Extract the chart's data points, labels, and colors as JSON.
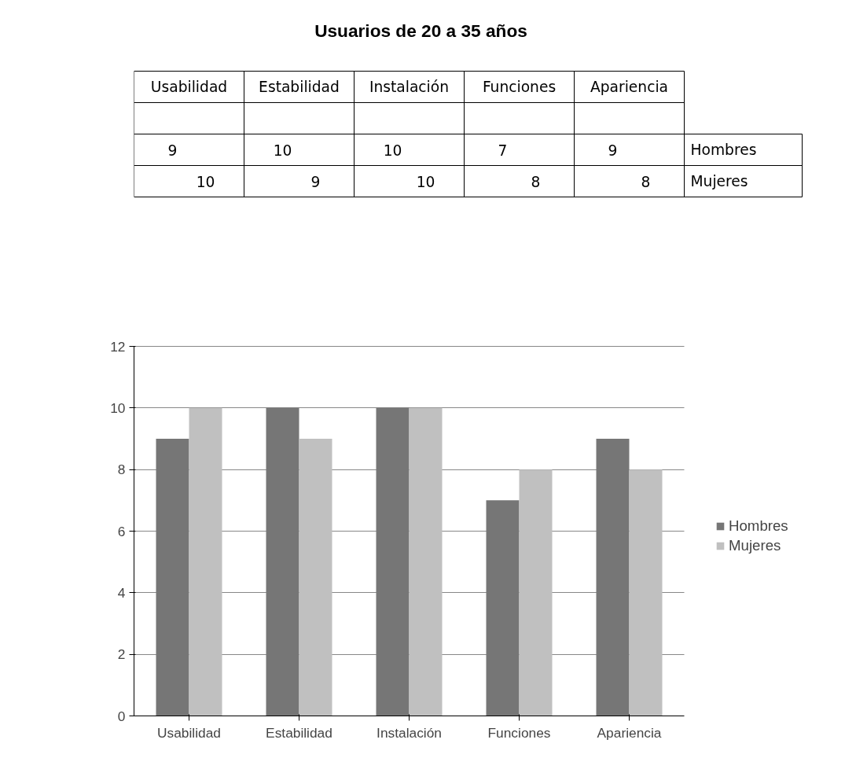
{
  "chart_data": {
    "type": "bar",
    "title": "Usuarios de 20 a 35 años",
    "categories": [
      "Usabilidad",
      "Estabilidad",
      "Instalación",
      "Funciones",
      "Apariencia"
    ],
    "series": [
      {
        "name": "Hombres",
        "color": "#767676",
        "values": [
          9,
          10,
          10,
          7,
          9
        ]
      },
      {
        "name": "Mujeres",
        "color": "#c0c0c0",
        "values": [
          10,
          9,
          10,
          8,
          8
        ]
      }
    ],
    "ylim": [
      0,
      12
    ],
    "yticks": [
      0,
      2,
      4,
      6,
      8,
      10,
      12
    ],
    "grid": "y",
    "legend": "right",
    "data_labels": true
  }
}
